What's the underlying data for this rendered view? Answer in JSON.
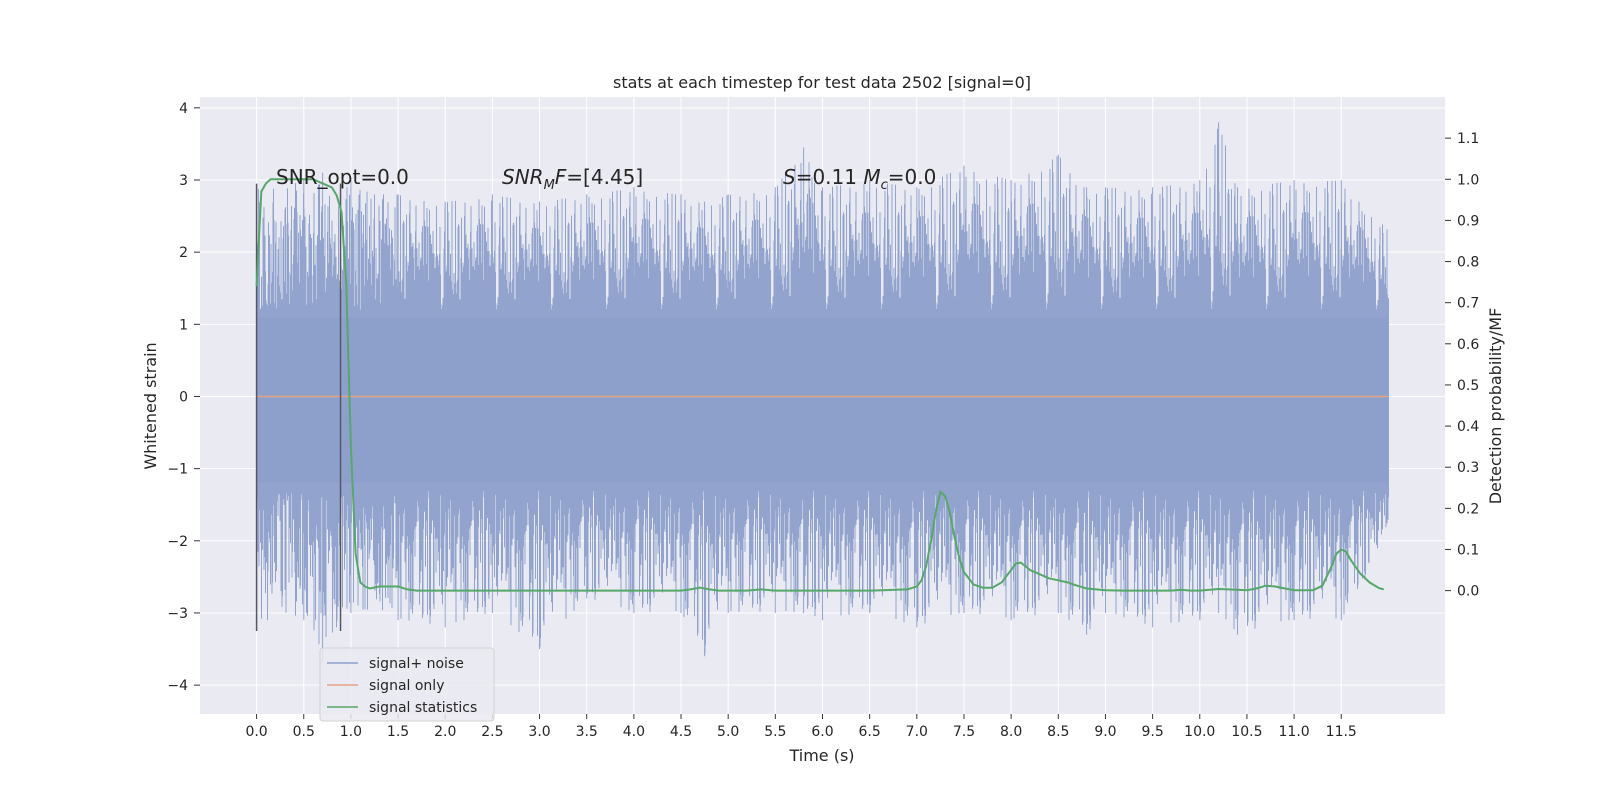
{
  "chart_data": {
    "type": "line",
    "title": "stats at each timestep for test data 2502 [signal=0]",
    "xlabel": "Time (s)",
    "ylabel": "Whitened strain",
    "y2label": "Detection probability/MF",
    "xlim": [
      -0.6,
      12.6
    ],
    "ylim": [
      -4.4,
      4.15
    ],
    "y2lim": [
      -0.3,
      1.2
    ],
    "xticks": [
      0.0,
      0.5,
      1.0,
      1.5,
      2.0,
      2.5,
      3.0,
      3.5,
      4.0,
      4.5,
      5.0,
      5.5,
      6.0,
      6.5,
      7.0,
      7.5,
      8.0,
      8.5,
      9.0,
      9.5,
      10.0,
      10.5,
      11.0,
      11.5
    ],
    "xtick_labels": [
      "0.0",
      "0.5",
      "1.0",
      "1.5",
      "2.0",
      "2.5",
      "3.0",
      "3.5",
      "4.0",
      "4.5",
      "5.0",
      "5.5",
      "6.0",
      "6.5",
      "7.0",
      "7.5",
      "8.0",
      "8.5",
      "9.0",
      "9.5",
      "10.0",
      "10.5",
      "11.0",
      "11.5"
    ],
    "yticks": [
      -4,
      -3,
      -2,
      -1,
      0,
      1,
      2,
      3,
      4
    ],
    "ytick_labels": [
      "−4",
      "−3",
      "−2",
      "−1",
      "0",
      "1",
      "2",
      "3",
      "4"
    ],
    "y2ticks": [
      0.0,
      0.1,
      0.2,
      0.3,
      0.4,
      0.5,
      0.6,
      0.7,
      0.8,
      0.9,
      1.0,
      1.1
    ],
    "y2tick_labels": [
      "0.0",
      "0.1",
      "0.2",
      "0.3",
      "0.4",
      "0.5",
      "0.6",
      "0.7",
      "0.8",
      "0.9",
      "1.0",
      "1.1"
    ],
    "grid": true,
    "legend_position": "bottom-left",
    "annotations": [
      {
        "text": "SNR_opt=0.0",
        "x": 0.2,
        "y": 3.0,
        "italic": false
      },
      {
        "text": "SNR_MF=[4.45]",
        "x": 2.6,
        "y": 3.0,
        "italic": true
      },
      {
        "text": "S=0.11   M_c=0.0",
        "x": 5.6,
        "y": 3.0,
        "italic": true
      }
    ],
    "vertical_lines": [
      0.0,
      0.89
    ],
    "series": [
      {
        "name": "signal+ noise",
        "color": "#8da0cb",
        "axis": "left",
        "x_range": [
          0.0,
          12.0
        ],
        "envelope": [
          {
            "x": 0.0,
            "max": 2.9,
            "min": -3.2
          },
          {
            "x": 0.5,
            "max": 3.0,
            "min": -3.1
          },
          {
            "x": 0.7,
            "max": 3.1,
            "min": -3.7
          },
          {
            "x": 1.0,
            "max": 3.0,
            "min": -3.0
          },
          {
            "x": 1.5,
            "max": 2.8,
            "min": -3.1
          },
          {
            "x": 2.0,
            "max": 2.7,
            "min": -3.2
          },
          {
            "x": 2.5,
            "max": 2.8,
            "min": -3.0
          },
          {
            "x": 3.0,
            "max": 2.7,
            "min": -3.5
          },
          {
            "x": 3.5,
            "max": 2.8,
            "min": -2.8
          },
          {
            "x": 4.0,
            "max": 2.9,
            "min": -3.0
          },
          {
            "x": 4.5,
            "max": 2.8,
            "min": -3.0
          },
          {
            "x": 4.75,
            "max": 2.7,
            "min": -3.6
          },
          {
            "x": 5.0,
            "max": 2.8,
            "min": -3.0
          },
          {
            "x": 5.5,
            "max": 2.9,
            "min": -3.0
          },
          {
            "x": 5.8,
            "max": 3.45,
            "min": -3.0
          },
          {
            "x": 6.0,
            "max": 2.9,
            "min": -3.1
          },
          {
            "x": 6.5,
            "max": 3.0,
            "min": -3.0
          },
          {
            "x": 7.0,
            "max": 2.9,
            "min": -3.2
          },
          {
            "x": 7.5,
            "max": 3.2,
            "min": -3.0
          },
          {
            "x": 8.0,
            "max": 3.0,
            "min": -3.1
          },
          {
            "x": 8.5,
            "max": 3.35,
            "min": -3.0
          },
          {
            "x": 8.8,
            "max": 2.9,
            "min": -3.3
          },
          {
            "x": 9.0,
            "max": 2.9,
            "min": -3.0
          },
          {
            "x": 9.5,
            "max": 2.9,
            "min": -3.2
          },
          {
            "x": 10.0,
            "max": 3.0,
            "min": -3.1
          },
          {
            "x": 10.2,
            "max": 3.8,
            "min": -3.0
          },
          {
            "x": 10.4,
            "max": 2.9,
            "min": -3.3
          },
          {
            "x": 11.0,
            "max": 3.0,
            "min": -3.1
          },
          {
            "x": 11.5,
            "max": 3.0,
            "min": -3.1
          },
          {
            "x": 12.0,
            "max": 2.3,
            "min": -2.0
          }
        ]
      },
      {
        "name": "signal only",
        "color": "#e5a184",
        "axis": "left",
        "x": [
          0.0,
          12.0
        ],
        "y": [
          0.0,
          0.0
        ]
      },
      {
        "name": "signal statistics",
        "color": "#55a868",
        "axis": "right",
        "x": [
          0.0,
          0.05,
          0.1,
          0.15,
          0.2,
          0.3,
          0.4,
          0.5,
          0.6,
          0.7,
          0.8,
          0.85,
          0.9,
          0.95,
          1.0,
          1.05,
          1.1,
          1.15,
          1.2,
          1.3,
          1.4,
          1.5,
          1.6,
          1.7,
          1.8,
          2.0,
          2.5,
          3.0,
          3.5,
          4.0,
          4.5,
          4.6,
          4.7,
          4.8,
          4.9,
          5.0,
          5.2,
          5.35,
          5.5,
          5.7,
          6.0,
          6.5,
          6.9,
          7.0,
          7.05,
          7.1,
          7.15,
          7.2,
          7.25,
          7.3,
          7.35,
          7.4,
          7.45,
          7.5,
          7.6,
          7.7,
          7.8,
          7.9,
          8.0,
          8.05,
          8.1,
          8.15,
          8.2,
          8.3,
          8.4,
          8.5,
          8.6,
          8.7,
          8.8,
          9.0,
          9.2,
          9.5,
          9.7,
          9.8,
          9.9,
          10.0,
          10.2,
          10.3,
          10.5,
          10.6,
          10.7,
          10.8,
          11.0,
          11.2,
          11.3,
          11.4,
          11.45,
          11.5,
          11.55,
          11.6,
          11.7,
          11.8,
          11.9,
          11.95
        ],
        "y": [
          0.74,
          0.97,
          0.99,
          1.0,
          1.0,
          1.0,
          1.0,
          1.0,
          1.0,
          0.99,
          0.98,
          0.96,
          0.92,
          0.75,
          0.35,
          0.09,
          0.02,
          0.01,
          0.005,
          0.01,
          0.01,
          0.01,
          0.003,
          0.0,
          0.0,
          0.0,
          0.0,
          0.0,
          0.0,
          0.0,
          0.0,
          0.003,
          0.007,
          0.003,
          0.0,
          0.0,
          0.0,
          0.003,
          0.0,
          0.0,
          0.0,
          0.0,
          0.003,
          0.01,
          0.025,
          0.06,
          0.12,
          0.19,
          0.24,
          0.23,
          0.19,
          0.13,
          0.08,
          0.045,
          0.015,
          0.007,
          0.007,
          0.02,
          0.05,
          0.066,
          0.068,
          0.06,
          0.05,
          0.04,
          0.03,
          0.025,
          0.02,
          0.012,
          0.005,
          0.001,
          0.0,
          0.0,
          0.0,
          0.002,
          0.0,
          0.0,
          0.004,
          0.003,
          0.001,
          0.005,
          0.012,
          0.01,
          0.001,
          0.001,
          0.012,
          0.06,
          0.09,
          0.1,
          0.095,
          0.075,
          0.042,
          0.02,
          0.006,
          0.003
        ]
      }
    ]
  }
}
